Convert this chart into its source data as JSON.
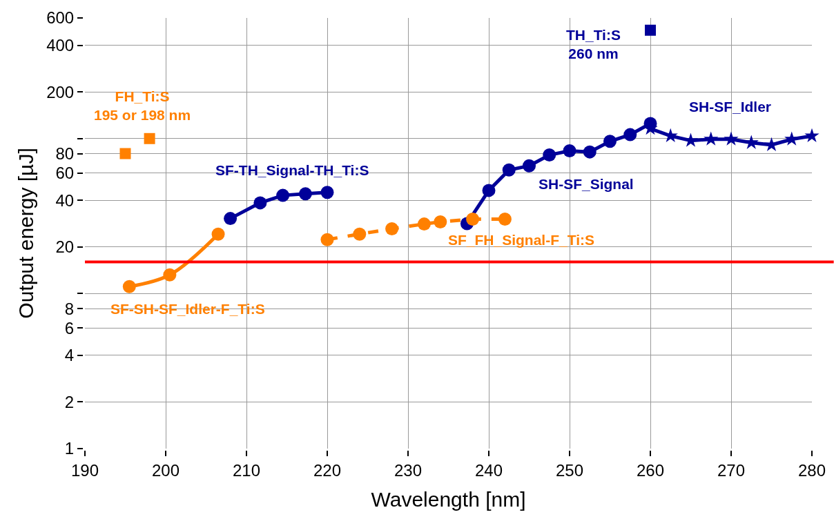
{
  "chart_data": {
    "type": "line",
    "xlabel": "Wavelength [nm]",
    "ylabel": "Output energy [µJ]",
    "log": "y",
    "xlim": [
      190,
      280
    ],
    "xticks": [
      190,
      200,
      210,
      220,
      230,
      240,
      250,
      260,
      270,
      280
    ],
    "ylim": [
      1,
      600
    ],
    "yticks": [
      1,
      2,
      4,
      6,
      8,
      {
        "value": 10,
        "label": null
      },
      20,
      40,
      60,
      80,
      {
        "value": 100,
        "label": null
      },
      200,
      400,
      600
    ],
    "grid": true,
    "legend": false,
    "ref_lines": [
      {
        "axis": "y",
        "value": 16,
        "color": "#ff0000",
        "line_style": "solid"
      }
    ],
    "series": [
      {
        "name": "FH_Ti:S\n195 or 198 nm",
        "type": "scatter",
        "marker": "square",
        "color": "#ff8000",
        "x": [
          195,
          198
        ],
        "values": [
          80,
          100
        ]
      },
      {
        "name": "SF-SH-SF_Idler-F_Ti:S",
        "marker": "circle",
        "line_style": "solid",
        "color": "#ff8000",
        "x": [
          195.5,
          200.5,
          206.5
        ],
        "values": [
          11.1,
          13.2,
          24.2
        ]
      },
      {
        "name": "SF-TH_Signal-TH_Ti:S",
        "marker": "circle",
        "line_style": "solid",
        "color": "#000099",
        "x": [
          208,
          211.7,
          214.5,
          217.3,
          220
        ],
        "values": [
          30.5,
          38.5,
          43,
          44,
          45
        ]
      },
      {
        "name": "SF_FH_Signal-F_Ti:S",
        "marker": "circle",
        "line_style": "dashed",
        "color": "#ff8000",
        "x": [
          220,
          224,
          228,
          232,
          234,
          238,
          242
        ],
        "values": [
          22.3,
          24.2,
          26.2,
          28.1,
          29,
          30.2,
          30.2
        ]
      },
      {
        "name": "SH-SF_Signal",
        "marker": "circle",
        "line_style": "solid",
        "color": "#000099",
        "x": [
          237.3,
          240,
          242.5,
          245,
          247.5,
          250,
          252.5,
          255,
          257.5,
          260
        ],
        "values": [
          28.3,
          46.3,
          62.7,
          66.7,
          78.4,
          83.4,
          82,
          96,
          106,
          125
        ]
      },
      {
        "name": "SH-SF_Idler",
        "marker": "star",
        "line_style": "solid",
        "color": "#000099",
        "x": [
          260,
          262.5,
          265,
          267.5,
          270,
          272.5,
          275,
          277.5,
          280
        ],
        "values": [
          116,
          104,
          97,
          99,
          99,
          94,
          91,
          99,
          104
        ]
      },
      {
        "name": "TH_Ti:S\n260 nm",
        "type": "scatter",
        "marker": "square",
        "color": "#000099",
        "x": [
          260
        ],
        "values": [
          500
        ]
      }
    ]
  }
}
